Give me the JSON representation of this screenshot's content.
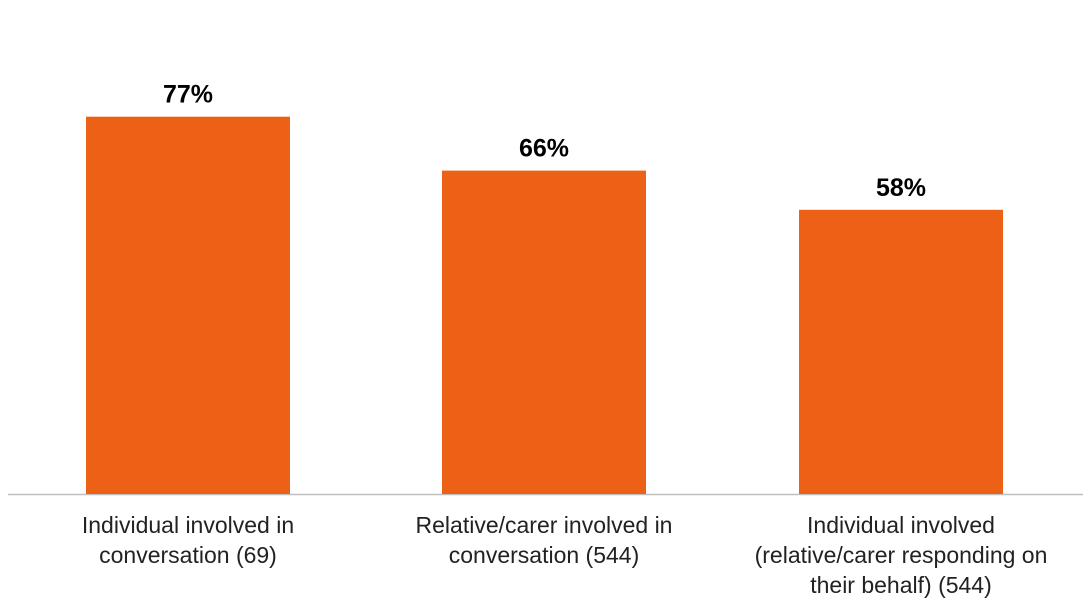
{
  "chart_data": {
    "type": "bar",
    "categories": [
      [
        "Individual involved in",
        "conversation (69)"
      ],
      [
        "Relative/carer involved in",
        "conversation (544)"
      ],
      [
        "Individual involved",
        "(relative/carer responding on",
        "their behalf) (544)"
      ]
    ],
    "values": [
      77,
      66,
      58
    ],
    "value_labels": [
      "77%",
      "66%",
      "58%"
    ],
    "ylim": [
      0,
      100
    ],
    "grid": false,
    "colors": {
      "bar": "#ED6116",
      "axis": "#BFBFBF"
    }
  }
}
